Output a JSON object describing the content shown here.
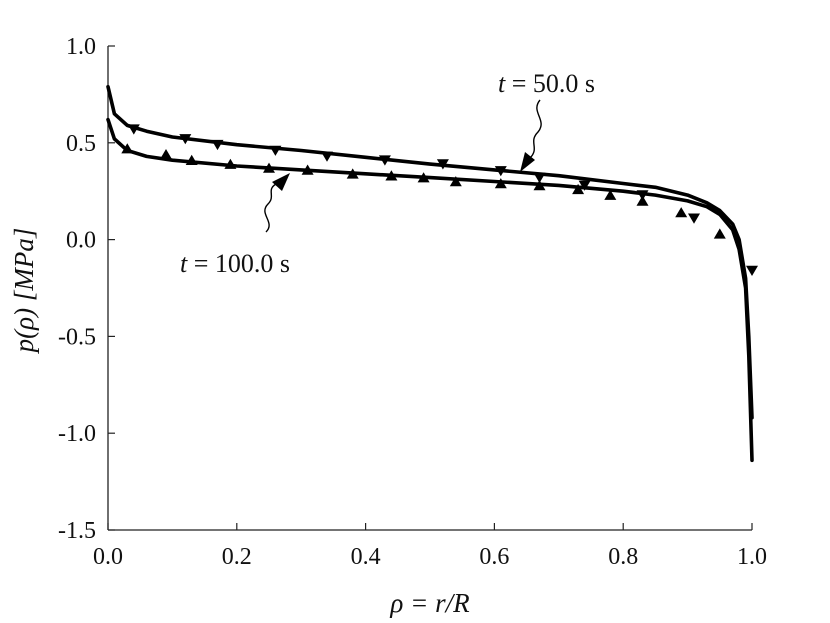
{
  "chart_data": {
    "type": "line",
    "title": "",
    "xlabel": "ρ = r/R",
    "ylabel": "p(ρ) [MPa]",
    "xlim": [
      0.0,
      1.0
    ],
    "ylim": [
      -1.5,
      1.0
    ],
    "x_ticks": [
      "0.0",
      "0.2",
      "0.4",
      "0.6",
      "0.8",
      "1.0"
    ],
    "y_ticks": [
      "1.0",
      "0.5",
      "0.0",
      "-0.5",
      "-1.0",
      "-1.5"
    ],
    "grid": false,
    "series": [
      {
        "name": "t = 50.0 s",
        "style": "solid-line-with-down-triangles",
        "curve": [
          [
            0.0,
            0.79
          ],
          [
            0.01,
            0.65
          ],
          [
            0.03,
            0.59
          ],
          [
            0.06,
            0.56
          ],
          [
            0.1,
            0.53
          ],
          [
            0.2,
            0.49
          ],
          [
            0.3,
            0.46
          ],
          [
            0.4,
            0.425
          ],
          [
            0.5,
            0.39
          ],
          [
            0.6,
            0.36
          ],
          [
            0.7,
            0.33
          ],
          [
            0.8,
            0.29
          ],
          [
            0.85,
            0.27
          ],
          [
            0.9,
            0.23
          ],
          [
            0.93,
            0.19
          ],
          [
            0.95,
            0.15
          ],
          [
            0.97,
            0.08
          ],
          [
            0.98,
            0.0
          ],
          [
            0.99,
            -0.2
          ],
          [
            0.995,
            -0.5
          ],
          [
            1.0,
            -0.92
          ]
        ],
        "markers": [
          [
            0.04,
            0.57
          ],
          [
            0.12,
            0.52
          ],
          [
            0.17,
            0.49
          ],
          [
            0.26,
            0.46
          ],
          [
            0.34,
            0.43
          ],
          [
            0.43,
            0.41
          ],
          [
            0.52,
            0.39
          ],
          [
            0.61,
            0.355
          ],
          [
            0.67,
            0.32
          ],
          [
            0.74,
            0.28
          ],
          [
            0.83,
            0.23
          ],
          [
            0.91,
            0.11
          ],
          [
            1.0,
            -0.16
          ]
        ]
      },
      {
        "name": "t = 100.0 s",
        "style": "solid-line-with-up-triangles",
        "curve": [
          [
            0.0,
            0.62
          ],
          [
            0.01,
            0.52
          ],
          [
            0.03,
            0.46
          ],
          [
            0.06,
            0.43
          ],
          [
            0.1,
            0.41
          ],
          [
            0.2,
            0.38
          ],
          [
            0.3,
            0.36
          ],
          [
            0.4,
            0.34
          ],
          [
            0.5,
            0.32
          ],
          [
            0.6,
            0.3
          ],
          [
            0.7,
            0.28
          ],
          [
            0.8,
            0.25
          ],
          [
            0.85,
            0.23
          ],
          [
            0.9,
            0.2
          ],
          [
            0.93,
            0.17
          ],
          [
            0.95,
            0.13
          ],
          [
            0.97,
            0.05
          ],
          [
            0.98,
            -0.05
          ],
          [
            0.99,
            -0.25
          ],
          [
            0.995,
            -0.6
          ],
          [
            1.0,
            -1.14
          ]
        ],
        "markers": [
          [
            0.03,
            0.47
          ],
          [
            0.09,
            0.44
          ],
          [
            0.13,
            0.41
          ],
          [
            0.19,
            0.39
          ],
          [
            0.25,
            0.37
          ],
          [
            0.31,
            0.36
          ],
          [
            0.38,
            0.34
          ],
          [
            0.44,
            0.33
          ],
          [
            0.49,
            0.32
          ],
          [
            0.54,
            0.3
          ],
          [
            0.61,
            0.29
          ],
          [
            0.67,
            0.28
          ],
          [
            0.73,
            0.26
          ],
          [
            0.78,
            0.23
          ],
          [
            0.83,
            0.2
          ],
          [
            0.89,
            0.14
          ],
          [
            0.95,
            0.03
          ]
        ]
      }
    ],
    "annotations": [
      {
        "text": "t = 50.0 s",
        "target": [
          0.63,
          0.36
        ]
      },
      {
        "text": "t = 100.0 s",
        "target": [
          0.28,
          0.34
        ]
      }
    ]
  }
}
